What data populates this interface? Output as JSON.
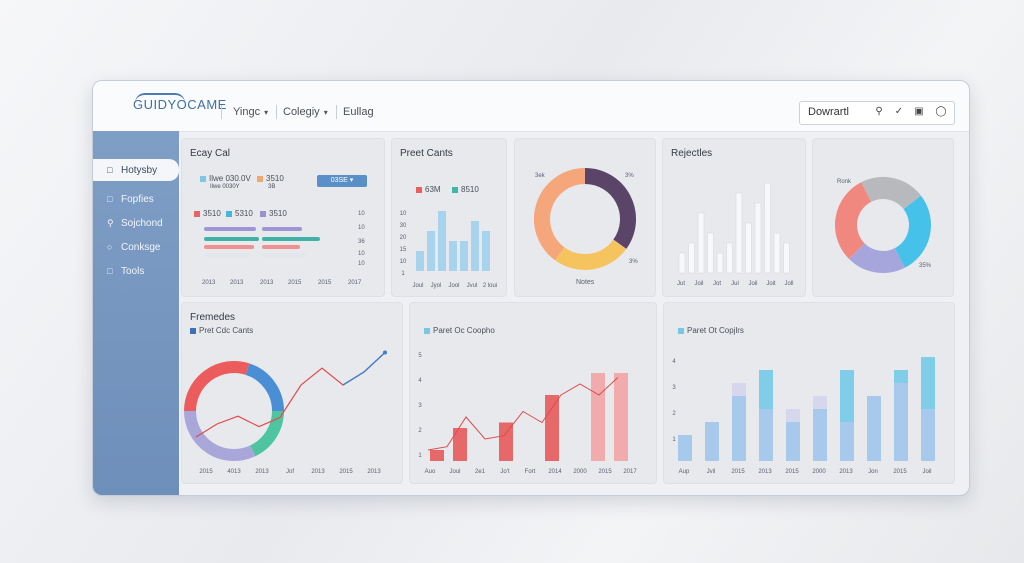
{
  "header": {
    "logo": "GUIDYOCAME",
    "nav": [
      {
        "label": "Yingc"
      },
      {
        "label": "Colegiy"
      },
      {
        "label": "Eullag"
      }
    ],
    "action_label": "Dowrartl"
  },
  "sidebar": {
    "items": [
      {
        "label": "Hotysby",
        "icon": "file-icon"
      },
      {
        "label": "Fopfies",
        "icon": "doc-icon"
      },
      {
        "label": "Sojchond",
        "icon": "search-icon"
      },
      {
        "label": "Conksge",
        "icon": "chat-icon"
      },
      {
        "label": "Tools",
        "icon": "tools-icon"
      }
    ]
  },
  "panels": {
    "easy": {
      "title": "Ecay Cal",
      "l1": "Ilwe 030.0V",
      "l2": "3510",
      "l1b": "Ilwe  0030Y",
      "l2b": "3B",
      "btn": "03SE  ▾",
      "row2a": "3510",
      "row2b": "5310",
      "row2c": "3510",
      "side_ticks": [
        "10",
        "10",
        "36",
        "10",
        "10"
      ],
      "x_ticks": [
        "2013",
        "2013",
        "2013",
        "2015",
        "2015",
        "2017"
      ]
    },
    "preset": {
      "title": "Preet Cants",
      "legend1": "63M",
      "legend2": "8510"
    },
    "donut1": {
      "label_tl": "3ek",
      "label_tr": "3%",
      "label_br": "3%",
      "bottom": "Notes"
    },
    "rejections": {
      "title": "Rejectles",
      "x_ticks": [
        "Jut",
        "Joil",
        "Jot",
        "Jul",
        "Joil",
        "Joit",
        "Joll"
      ]
    },
    "donut2": {
      "label_l": "Ronk",
      "label_r": "35%"
    },
    "frenedes": {
      "title": "Fremedes",
      "legend": "Pret Cdc Cants",
      "x_ticks": [
        "2015",
        "4013",
        "2013",
        "Jof",
        "2013",
        "2015",
        "2013"
      ]
    },
    "mid": {
      "legend": "Paret Oc Coopho",
      "x_ticks": [
        "Auo",
        "Joul",
        "2e1",
        "Jo't",
        "Fort",
        "2014",
        "2000",
        "2015",
        "2017"
      ]
    },
    "right": {
      "legend": "Paret Ot Copjlrs",
      "x_ticks": [
        "Aup",
        "Jvil",
        "2015",
        "2013",
        "2015",
        "2000",
        "2013",
        "Jon",
        "2015",
        "Joil"
      ]
    }
  },
  "chart_data": [
    {
      "type": "bar",
      "name": "preset-bars",
      "values": [
        2,
        4,
        6,
        3,
        3,
        5,
        4
      ]
    },
    {
      "type": "pie",
      "name": "donut1",
      "values": [
        35,
        25,
        40
      ],
      "colors": [
        "#5a4468",
        "#f6c45f",
        "#f5a67a"
      ]
    },
    {
      "type": "bar",
      "name": "rejection-bars",
      "values": [
        2,
        3,
        6,
        4,
        2,
        3,
        8,
        5,
        7,
        9,
        4,
        3
      ]
    },
    {
      "type": "pie",
      "name": "donut2",
      "values": [
        30,
        22,
        28,
        20
      ],
      "colors": [
        "#f08880",
        "#b7b9bd",
        "#45c1ea",
        "#a7a6dc"
      ]
    },
    {
      "type": "pie",
      "name": "donut3",
      "values": [
        30,
        20,
        18,
        32
      ],
      "colors": [
        "#ec5c5c",
        "#4a8ed6",
        "#4ec5a0",
        "#a9a6da"
      ]
    },
    {
      "type": "line",
      "name": "frenedes-line",
      "values": [
        2,
        3,
        3.6,
        2.8,
        3.5,
        6,
        7.3,
        6,
        7,
        8.5
      ]
    },
    {
      "type": "bar",
      "name": "mid-bars",
      "values": [
        1,
        3,
        0,
        3.5,
        0,
        6,
        0,
        8,
        8
      ],
      "line": [
        1,
        1.3,
        4,
        2,
        2.3,
        4.5,
        3.5,
        6,
        7,
        6,
        7.6
      ]
    },
    {
      "type": "bar",
      "name": "right-bars",
      "values": [
        2,
        3,
        5,
        7,
        3,
        4,
        7,
        5,
        7,
        8
      ],
      "faint": [
        2,
        3,
        6,
        4,
        4,
        5,
        3,
        5,
        6,
        4
      ]
    }
  ]
}
